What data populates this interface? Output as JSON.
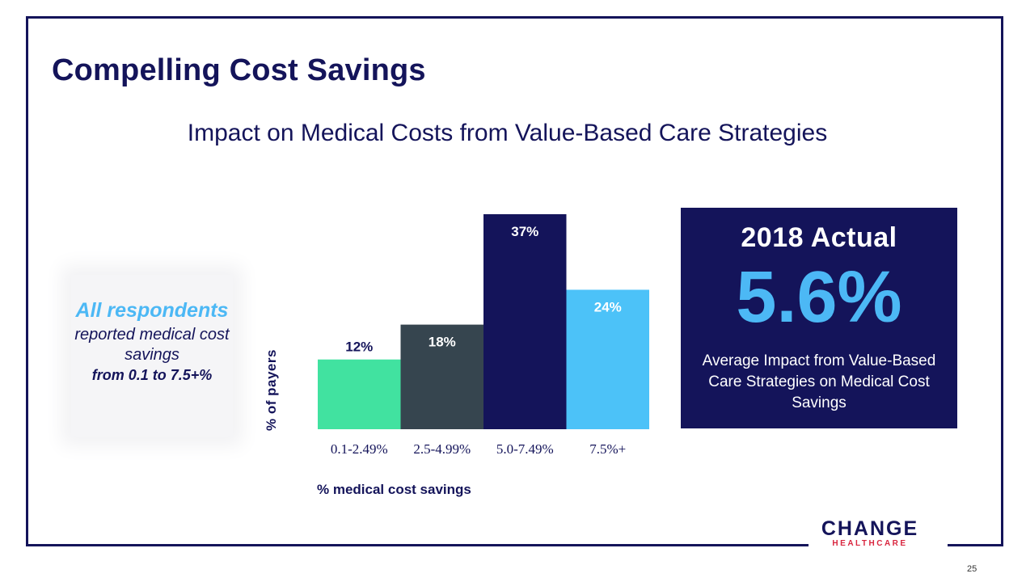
{
  "title": "Compelling Cost Savings",
  "subtitle": "Impact on Medical Costs from Value-Based Care Strategies",
  "callout": {
    "line1": "All respondents",
    "line2": "reported medical cost savings",
    "line3": "from 0.1 to 7.5+%"
  },
  "chart_data": {
    "type": "bar",
    "categories": [
      "0.1-2.49%",
      "2.5-4.99%",
      "5.0-7.49%",
      "7.5%+"
    ],
    "values": [
      12,
      18,
      37,
      24
    ],
    "data_labels": [
      "12%",
      "18%",
      "37%",
      "24%"
    ],
    "colors": [
      "#41e2a0",
      "#36454f",
      "#14145a",
      "#4cc2f8"
    ],
    "label_colors": [
      "#14145a",
      "#ffffff",
      "#ffffff",
      "#ffffff"
    ],
    "xlabel": "% medical cost savings",
    "ylabel": "% of payers",
    "ylim": [
      0,
      37
    ],
    "grid": false,
    "legend": "none"
  },
  "stat": {
    "year_label": "2018 Actual",
    "value": "5.6%",
    "description": "Average Impact from Value-Based Care Strategies on Medical Cost Savings"
  },
  "logo": {
    "name_top": "CHANGE",
    "name_bottom": "HEALTHCARE"
  },
  "page_number": "25"
}
